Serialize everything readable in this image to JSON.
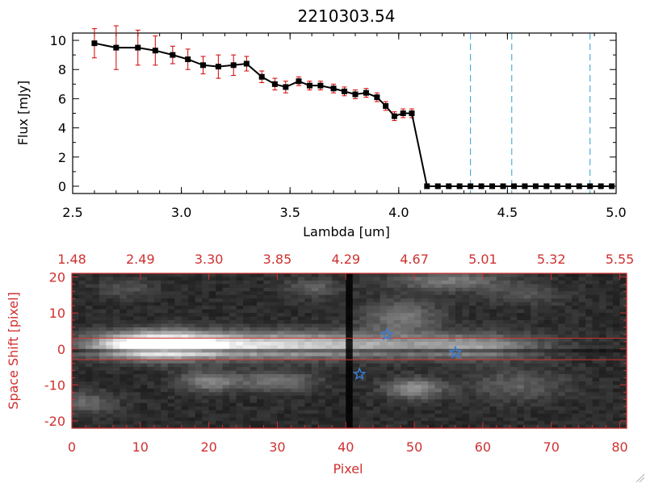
{
  "colors": {
    "spectrum_line": "#000000",
    "error_bar": "#d40000",
    "marker": "#000000",
    "wavelength_line": "#2f9fd0",
    "image_frame": "#d03030",
    "extraction_line": "#d03030",
    "star": "#3a7bd5"
  },
  "chart_data": [
    {
      "type": "line",
      "title": "2210303.54",
      "xlabel": "Lambda [um]",
      "ylabel": "Flux [mJy]",
      "xlim": [
        2.5,
        5.0
      ],
      "ylim": [
        -0.5,
        10.5
      ],
      "xticks": [
        {
          "value": 2.5,
          "label": "2.5"
        },
        {
          "value": 3.0,
          "label": "3.0"
        },
        {
          "value": 3.5,
          "label": "3.5"
        },
        {
          "value": 4.0,
          "label": "4.0"
        },
        {
          "value": 4.5,
          "label": "4.5"
        },
        {
          "value": 5.0,
          "label": "5.0"
        }
      ],
      "yticks": [
        {
          "value": 0,
          "label": "0"
        },
        {
          "value": 2,
          "label": "2"
        },
        {
          "value": 4,
          "label": "4"
        },
        {
          "value": 6,
          "label": "6"
        },
        {
          "value": 8,
          "label": "8"
        },
        {
          "value": 10,
          "label": "10"
        }
      ],
      "series": [
        {
          "name": "flux",
          "x": [
            2.6,
            2.7,
            2.8,
            2.88,
            2.96,
            3.03,
            3.1,
            3.17,
            3.24,
            3.3,
            3.37,
            3.43,
            3.48,
            3.54,
            3.59,
            3.64,
            3.7,
            3.75,
            3.8,
            3.85,
            3.9,
            3.94,
            3.98,
            4.02,
            4.06,
            4.13,
            4.18,
            4.23,
            4.28,
            4.33,
            4.38,
            4.43,
            4.48,
            4.53,
            4.58,
            4.63,
            4.68,
            4.73,
            4.78,
            4.83,
            4.88,
            4.93,
            4.98
          ],
          "y": [
            9.8,
            9.5,
            9.5,
            9.3,
            9.0,
            8.7,
            8.3,
            8.2,
            8.3,
            8.4,
            7.5,
            7.0,
            6.8,
            7.2,
            6.9,
            6.9,
            6.7,
            6.5,
            6.3,
            6.4,
            6.1,
            5.5,
            4.8,
            5.0,
            5.0,
            0,
            0,
            0,
            0,
            0,
            0,
            0,
            0,
            0,
            0,
            0,
            0,
            0,
            0,
            0,
            0,
            0,
            0
          ],
          "yerr": [
            1.0,
            1.5,
            1.2,
            1.0,
            0.6,
            0.7,
            0.6,
            0.8,
            0.7,
            0.5,
            0.4,
            0.4,
            0.4,
            0.3,
            0.3,
            0.3,
            0.3,
            0.3,
            0.3,
            0.3,
            0.3,
            0.3,
            0.3,
            0.3,
            0.3,
            0,
            0,
            0,
            0,
            0,
            0,
            0,
            0,
            0,
            0,
            0,
            0,
            0,
            0,
            0,
            0,
            0,
            0
          ]
        }
      ],
      "reference_lines_x": [
        4.33,
        4.52,
        4.88
      ]
    },
    {
      "type": "heatmap",
      "xlabel": "Pixel",
      "ylabel": "Space Shift [pixel]",
      "xlim": [
        0,
        81
      ],
      "ylim": [
        -22,
        21
      ],
      "xticks": [
        {
          "value": 0,
          "label": "0"
        },
        {
          "value": 10,
          "label": "10"
        },
        {
          "value": 20,
          "label": "20"
        },
        {
          "value": 30,
          "label": "30"
        },
        {
          "value": 40,
          "label": "40"
        },
        {
          "value": 50,
          "label": "50"
        },
        {
          "value": 60,
          "label": "60"
        },
        {
          "value": 70,
          "label": "70"
        },
        {
          "value": 80,
          "label": "80"
        }
      ],
      "yticks": [
        {
          "value": -20,
          "label": "-20"
        },
        {
          "value": -10,
          "label": "-10"
        },
        {
          "value": 0,
          "label": "0"
        },
        {
          "value": 10,
          "label": "10"
        },
        {
          "value": 20,
          "label": "20"
        }
      ],
      "top_axis_ticks": [
        {
          "value": 0,
          "label": "1.48"
        },
        {
          "value": 10,
          "label": "2.49"
        },
        {
          "value": 20,
          "label": "3.30"
        },
        {
          "value": 30,
          "label": "3.85"
        },
        {
          "value": 40,
          "label": "4.29"
        },
        {
          "value": 50,
          "label": "4.67"
        },
        {
          "value": 60,
          "label": "5.01"
        },
        {
          "value": 70,
          "label": "5.32"
        },
        {
          "value": 80,
          "label": "5.55"
        }
      ],
      "extraction_window": [
        -3,
        3
      ],
      "blobs": [
        {
          "x": 12,
          "y": 1,
          "sx": 6,
          "sy": 2.5,
          "a": 0.9
        },
        {
          "x": 24,
          "y": 1,
          "sx": 12,
          "sy": 2.5,
          "a": 0.55
        },
        {
          "x": 45,
          "y": 1,
          "sx": 14,
          "sy": 2.5,
          "a": 0.35
        },
        {
          "x": 60,
          "y": 0.5,
          "sx": 6,
          "sy": 2.5,
          "a": 0.25
        },
        {
          "x": 20,
          "y": -9,
          "sx": 3,
          "sy": 2,
          "a": 0.35
        },
        {
          "x": 30,
          "y": -9,
          "sx": 4,
          "sy": 2,
          "a": 0.3
        },
        {
          "x": 50,
          "y": -11,
          "sx": 3,
          "sy": 2,
          "a": 0.4
        },
        {
          "x": 65,
          "y": -10,
          "sx": 5,
          "sy": 3,
          "a": 0.2
        },
        {
          "x": 2,
          "y": -15,
          "sx": 3,
          "sy": 2,
          "a": 0.25
        },
        {
          "x": 48,
          "y": 9,
          "sx": 4,
          "sy": 3,
          "a": 0.3
        },
        {
          "x": 55,
          "y": 19,
          "sx": 6,
          "sy": 2,
          "a": 0.3
        },
        {
          "x": 35,
          "y": 17,
          "sx": 3,
          "sy": 2,
          "a": 0.2
        },
        {
          "x": 66,
          "y": 15,
          "sx": 4,
          "sy": 2,
          "a": 0.15
        },
        {
          "x": 8,
          "y": 17,
          "sx": 3,
          "sy": 2,
          "a": 0.15
        }
      ],
      "dark_columns": [
        40
      ],
      "stars": [
        {
          "x": 46,
          "y": 4
        },
        {
          "x": 56,
          "y": -1
        },
        {
          "x": 42,
          "y": -7
        }
      ]
    }
  ]
}
